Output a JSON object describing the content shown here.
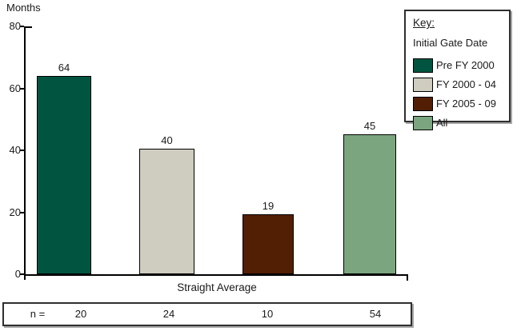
{
  "chart_data": {
    "type": "bar",
    "title": "Months",
    "categories": [
      "Pre FY 2000",
      "FY 2000 - 04",
      "FY 2005 - 09",
      "All"
    ],
    "values": [
      64,
      40.5,
      19.4,
      45.2
    ],
    "value_labels": [
      "64",
      "40",
      "19",
      "45"
    ],
    "colors": [
      "#015540",
      "#cfccc0",
      "#521e04",
      "#7ba57e"
    ],
    "xlabel": "Straight Average",
    "ylabel": "Months",
    "ylim": [
      0,
      80
    ],
    "ytick_labels": [
      "80",
      "60",
      "40",
      "20",
      "0"
    ],
    "grid": false,
    "legend_position": "top-right",
    "n_row": {
      "prefix": "n =",
      "values": [
        "20",
        "24",
        "10",
        "54"
      ]
    }
  },
  "legend": {
    "title": "Key:",
    "subtitle": "Initial Gate Date",
    "items": [
      {
        "label": "Pre FY 2000",
        "color": "#015540"
      },
      {
        "label": "FY 2000 - 04",
        "color": "#cfccc0"
      },
      {
        "label": "FY 2005 - 09",
        "color": "#521e04"
      },
      {
        "label": "All",
        "color": "#7ba57e"
      }
    ]
  }
}
